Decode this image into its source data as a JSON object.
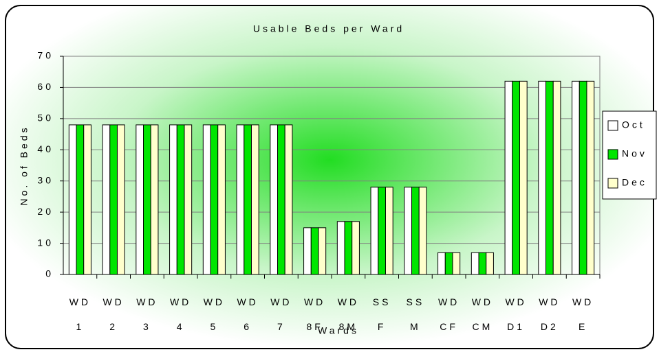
{
  "chart_data": {
    "type": "bar",
    "title": "Usable Beds per Ward",
    "x_label": "Wards",
    "y_label": "No. of Beds",
    "categories": [
      "WD 1",
      "WD 2",
      "WD 3",
      "WD 4",
      "WD 5",
      "WD 6",
      "WD 7",
      "WD 8F",
      "WD 8M",
      "SS F",
      "SS M",
      "WD CF",
      "WD CM",
      "WD D1",
      "WD D2",
      "WD E"
    ],
    "series": [
      {
        "name": "Oct",
        "color": "#ffffff",
        "values": [
          48,
          48,
          48,
          48,
          48,
          48,
          48,
          15,
          17,
          28,
          28,
          7,
          7,
          62,
          62,
          62
        ]
      },
      {
        "name": "Nov",
        "color": "#00e600",
        "values": [
          48,
          48,
          48,
          48,
          48,
          48,
          48,
          15,
          17,
          28,
          28,
          7,
          7,
          62,
          62,
          62
        ]
      },
      {
        "name": "Dec",
        "color": "#ffffcc",
        "values": [
          48,
          48,
          48,
          48,
          48,
          48,
          48,
          15,
          17,
          28,
          28,
          7,
          7,
          62,
          62,
          62
        ]
      }
    ],
    "ylim": [
      0,
      70
    ],
    "yticks": [
      0,
      10,
      20,
      30,
      40,
      50,
      60,
      70
    ],
    "grid": true,
    "legend": "right"
  }
}
